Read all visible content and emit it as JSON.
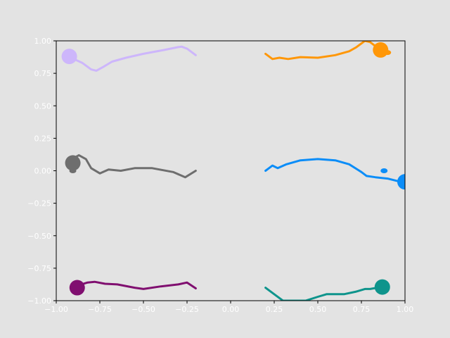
{
  "chart_data": {
    "type": "line",
    "title": "",
    "xlabel": "",
    "ylabel": "",
    "xlim": [
      -1.0,
      1.0
    ],
    "ylim": [
      -1.0,
      1.0
    ],
    "grid": false,
    "legend": "none",
    "x_ticks": [
      -1.0,
      -0.75,
      -0.5,
      -0.25,
      0.0,
      0.25,
      0.5,
      0.75,
      1.0
    ],
    "x_tick_labels": [
      "−1.00",
      "−0.75",
      "−0.50",
      "−0.25",
      "0.00",
      "0.25",
      "0.50",
      "0.75",
      "1.00"
    ],
    "y_ticks": [
      1.0,
      0.75,
      0.5,
      0.25,
      0.0,
      -0.25,
      -0.5,
      -0.75,
      -1.0
    ],
    "y_tick_labels": [
      "1.00",
      "0.75",
      "0.50",
      "0.25",
      "0.00",
      "−0.25",
      "−0.50",
      "−0.75",
      "−1.00"
    ],
    "colors": {
      "figure_background": "#e3e3e3",
      "plot_background": "#e3e3e3",
      "axes": "#000000",
      "tick_labels": "#ffffff"
    },
    "series": [
      {
        "color": "#cdb6fb",
        "points": [
          [
            -0.2,
            0.89
          ],
          [
            -0.25,
            0.94
          ],
          [
            -0.28,
            0.955
          ],
          [
            -0.3,
            0.952
          ],
          [
            -0.38,
            0.93
          ],
          [
            -0.5,
            0.9
          ],
          [
            -0.6,
            0.87
          ],
          [
            -0.68,
            0.84
          ],
          [
            -0.73,
            0.8
          ],
          [
            -0.77,
            0.77
          ],
          [
            -0.8,
            0.78
          ],
          [
            -0.85,
            0.83
          ],
          [
            -0.9,
            0.86
          ],
          [
            -0.925,
            0.88
          ]
        ],
        "head": {
          "x": -0.925,
          "y": 0.88
        }
      },
      {
        "color": "#ff9708",
        "points": [
          [
            0.2,
            0.9
          ],
          [
            0.24,
            0.86
          ],
          [
            0.28,
            0.87
          ],
          [
            0.33,
            0.86
          ],
          [
            0.4,
            0.875
          ],
          [
            0.5,
            0.87
          ],
          [
            0.6,
            0.89
          ],
          [
            0.68,
            0.92
          ],
          [
            0.72,
            0.95
          ],
          [
            0.77,
            1.0
          ],
          [
            0.8,
            0.99
          ],
          [
            0.83,
            0.96
          ],
          [
            0.86,
            0.93
          ],
          [
            0.9,
            0.91
          ]
        ],
        "head": {
          "x": 0.86,
          "y": 0.93
        }
      },
      {
        "color": "#6e6e6e",
        "points": [
          [
            -0.2,
            0.0
          ],
          [
            -0.26,
            -0.05
          ],
          [
            -0.33,
            -0.01
          ],
          [
            -0.45,
            0.02
          ],
          [
            -0.55,
            0.02
          ],
          [
            -0.63,
            0.0
          ],
          [
            -0.7,
            0.01
          ],
          [
            -0.75,
            -0.02
          ],
          [
            -0.8,
            0.02
          ],
          [
            -0.83,
            0.09
          ],
          [
            -0.87,
            0.12
          ],
          [
            -0.91,
            0.09
          ],
          [
            -0.905,
            0.04
          ],
          [
            -0.9,
            0.0
          ]
        ],
        "head": {
          "x": -0.905,
          "y": 0.06
        }
      },
      {
        "color": "#0b8df8",
        "points": [
          [
            0.2,
            0.0
          ],
          [
            0.24,
            0.04
          ],
          [
            0.27,
            0.02
          ],
          [
            0.32,
            0.05
          ],
          [
            0.4,
            0.08
          ],
          [
            0.5,
            0.09
          ],
          [
            0.6,
            0.08
          ],
          [
            0.68,
            0.05
          ],
          [
            0.75,
            -0.01
          ],
          [
            0.78,
            -0.04
          ],
          [
            0.83,
            -0.05
          ],
          [
            0.9,
            -0.06
          ],
          [
            0.96,
            -0.08
          ],
          [
            1.0,
            -0.09
          ]
        ],
        "head": {
          "x": 1.0,
          "y": -0.085
        }
      },
      {
        "color": "#800f70",
        "points": [
          [
            -0.2,
            -0.905
          ],
          [
            -0.25,
            -0.86
          ],
          [
            -0.3,
            -0.875
          ],
          [
            -0.4,
            -0.89
          ],
          [
            -0.5,
            -0.91
          ],
          [
            -0.55,
            -0.9
          ],
          [
            -0.65,
            -0.875
          ],
          [
            -0.72,
            -0.87
          ],
          [
            -0.78,
            -0.855
          ],
          [
            -0.82,
            -0.86
          ],
          [
            -0.87,
            -0.88
          ],
          [
            -0.9,
            -0.89
          ],
          [
            -0.915,
            -0.9
          ]
        ],
        "head": {
          "x": -0.88,
          "y": -0.9
        }
      },
      {
        "color": "#0e948c",
        "points": [
          [
            0.2,
            -0.9
          ],
          [
            0.25,
            -0.95
          ],
          [
            0.3,
            -1.0
          ],
          [
            0.35,
            -1.0
          ],
          [
            0.43,
            -1.0
          ],
          [
            0.5,
            -0.97
          ],
          [
            0.55,
            -0.95
          ],
          [
            0.65,
            -0.95
          ],
          [
            0.72,
            -0.93
          ],
          [
            0.77,
            -0.91
          ],
          [
            0.8,
            -0.91
          ],
          [
            0.84,
            -0.9
          ]
        ],
        "head": {
          "x": 0.87,
          "y": -0.895
        }
      }
    ],
    "extra_blobs": [
      {
        "color": "#0b8df8",
        "x": 0.88,
        "y": 0.0
      },
      {
        "color": "#6e6e6e",
        "x": -0.905,
        "y": 0.0
      },
      {
        "color": "#ff9708",
        "x": 0.9,
        "y": 0.91
      }
    ]
  }
}
